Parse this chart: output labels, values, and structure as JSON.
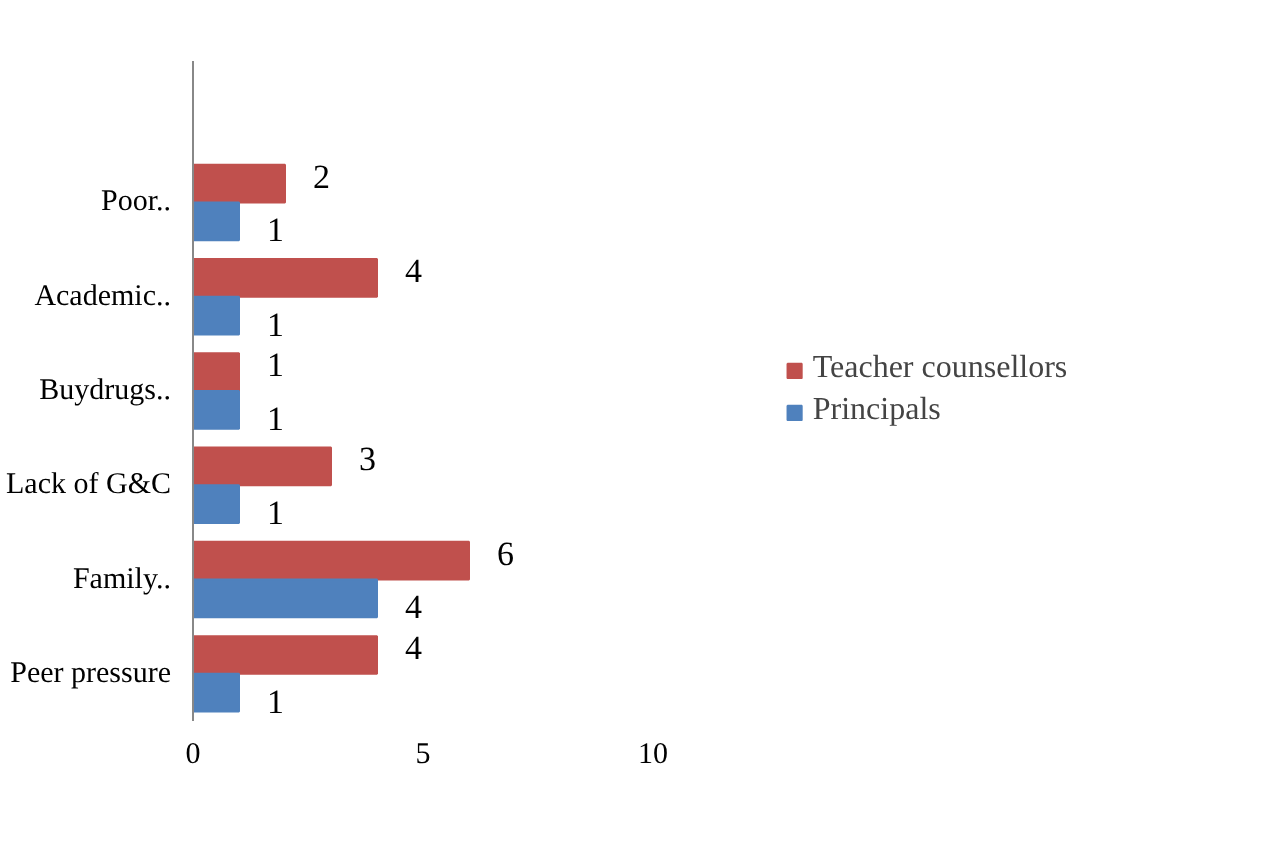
{
  "chart_data": {
    "type": "bar",
    "orientation": "horizontal",
    "categories": [
      "Poor..",
      "Academic..",
      "Buydrugs..",
      "Lack of G&C",
      "Family..",
      "Peer pressure"
    ],
    "series": [
      {
        "name": "Teacher counsellors",
        "color": "#c0504d",
        "values": [
          2,
          4,
          1,
          3,
          6,
          4
        ]
      },
      {
        "name": "Principals",
        "color": "#4f81bd",
        "values": [
          1,
          1,
          1,
          1,
          4,
          1
        ]
      }
    ],
    "xlim": [
      0,
      10
    ],
    "xticks": [
      0,
      5,
      10
    ],
    "data_labels": true,
    "grid": false,
    "legend": "right"
  }
}
